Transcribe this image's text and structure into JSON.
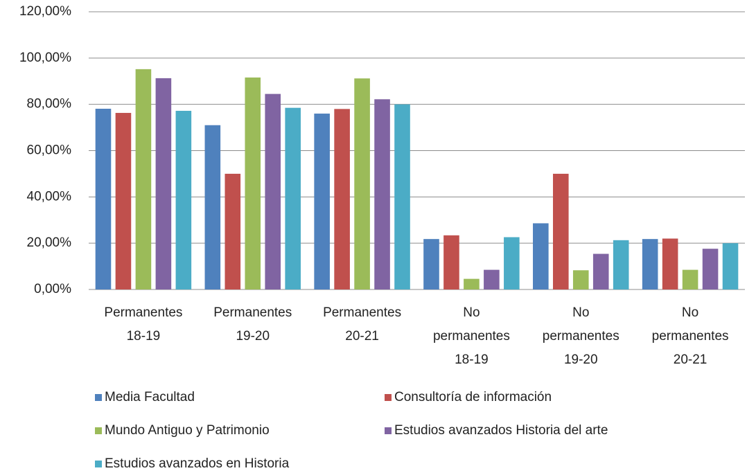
{
  "chart_data": {
    "type": "bar",
    "categories": [
      [
        "Permanentes",
        "18-19"
      ],
      [
        "Permanentes",
        "19-20"
      ],
      [
        "Permanentes",
        "20-21"
      ],
      [
        "No",
        "permanentes",
        "18-19"
      ],
      [
        "No",
        "permanentes",
        "19-20"
      ],
      [
        "No",
        "permanentes",
        "20-21"
      ]
    ],
    "series": [
      {
        "name": "Media Facultad",
        "color": "#4f81bd",
        "values": [
          78.1,
          71,
          76,
          21.8,
          28.6,
          21.8
        ]
      },
      {
        "name": "Consultoría de información",
        "color": "#c0504d",
        "values": [
          76.3,
          50,
          78,
          23.4,
          50,
          22
        ]
      },
      {
        "name": "Mundo Antiguo y Patrimonio",
        "color": "#9bbb59",
        "values": [
          95.2,
          91.6,
          91.2,
          4.6,
          8.3,
          8.5
        ]
      },
      {
        "name": "Estudios avanzados Historia del arte",
        "color": "#8064a2",
        "values": [
          91.3,
          84.5,
          82.2,
          8.5,
          15.4,
          17.6
        ]
      },
      {
        "name": "Estudios avanzados en Historia",
        "color": "#4bacc6",
        "values": [
          77.2,
          78.5,
          80,
          22.6,
          21.3,
          20
        ]
      }
    ],
    "ylim": [
      0,
      120
    ],
    "yticks": [
      {
        "value": 0,
        "label": "0,00%"
      },
      {
        "value": 20,
        "label": "20,00%"
      },
      {
        "value": 40,
        "label": "40,00%"
      },
      {
        "value": 60,
        "label": "60,00%"
      },
      {
        "value": 80,
        "label": "80,00%"
      },
      {
        "value": 100,
        "label": "100,00%"
      },
      {
        "value": 120,
        "label": "120,00%"
      }
    ],
    "grid": true,
    "legend": "bottom"
  }
}
